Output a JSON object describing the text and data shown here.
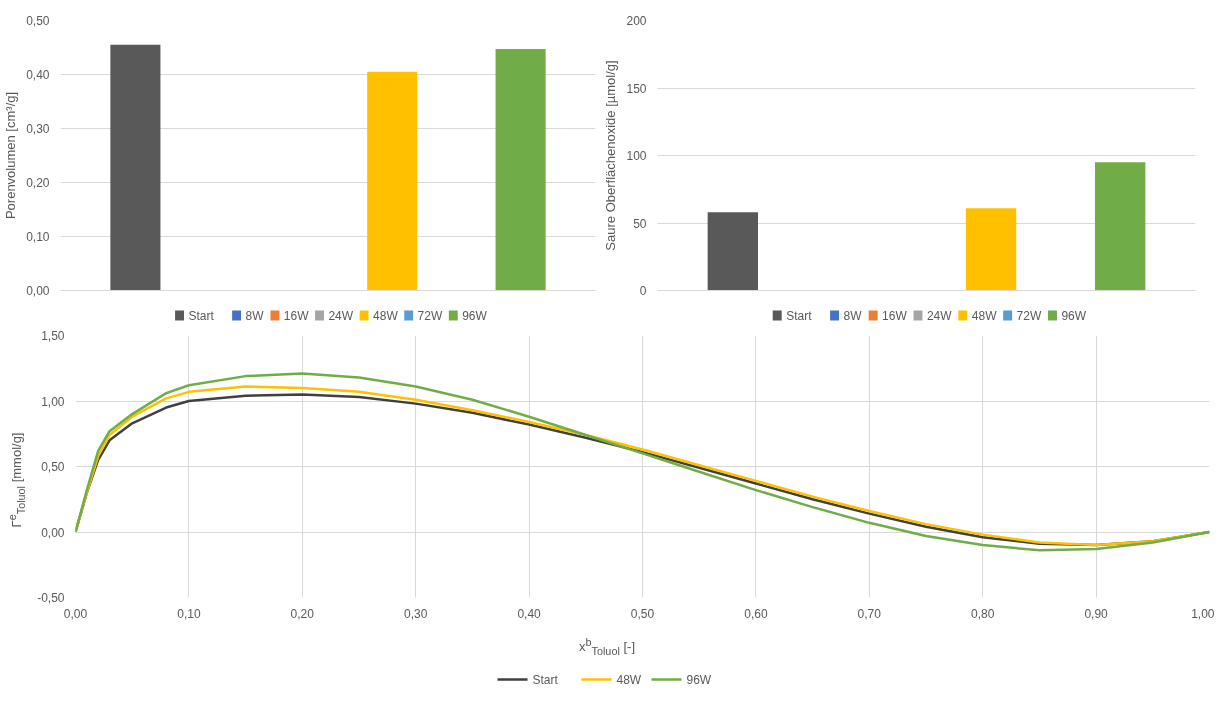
{
  "chart_data": [
    {
      "type": "bar",
      "ylabel": "Porenvolumen [cm³/g]",
      "categories": [
        null
      ],
      "ylim": [
        0,
        0.5
      ],
      "yticks": [
        {
          "value": 0,
          "label": "0,00"
        },
        {
          "value": 0.1,
          "label": "0,10"
        },
        {
          "value": 0.2,
          "label": "0,20"
        },
        {
          "value": 0.3,
          "label": "0,30"
        },
        {
          "value": 0.4,
          "label": "0,40"
        },
        {
          "value": 0.5,
          "label": "0,50"
        }
      ],
      "grid": "y",
      "legend": "bottom",
      "series": [
        {
          "name": "Start",
          "color": "#595959",
          "values": [
            0.455
          ]
        },
        {
          "name": "8W",
          "color": "#4472c4",
          "values": [
            null
          ]
        },
        {
          "name": "16W",
          "color": "#ed7d31",
          "values": [
            null
          ]
        },
        {
          "name": "24W",
          "color": "#a5a5a5",
          "values": [
            null
          ]
        },
        {
          "name": "48W",
          "color": "#ffc000",
          "values": [
            0.405
          ]
        },
        {
          "name": "72W",
          "color": "#5b9bd5",
          "values": [
            null
          ]
        },
        {
          "name": "96W",
          "color": "#70ad47",
          "values": [
            0.447
          ]
        }
      ]
    },
    {
      "type": "bar",
      "ylabel": "Saure Oberflächenoxide [µmol/g]",
      "categories": [
        null
      ],
      "ylim": [
        0,
        200
      ],
      "yticks": [
        0,
        50,
        100,
        150,
        200
      ],
      "grid": "y",
      "legend": "bottom",
      "series": [
        {
          "name": "Start",
          "color": "#595959",
          "values": [
            58
          ]
        },
        {
          "name": "8W",
          "color": "#4472c4",
          "values": [
            null
          ]
        },
        {
          "name": "16W",
          "color": "#ed7d31",
          "values": [
            null
          ]
        },
        {
          "name": "24W",
          "color": "#a5a5a5",
          "values": [
            null
          ]
        },
        {
          "name": "48W",
          "color": "#ffc000",
          "values": [
            61
          ]
        },
        {
          "name": "72W",
          "color": "#5b9bd5",
          "values": [
            null
          ]
        },
        {
          "name": "96W",
          "color": "#70ad47",
          "values": [
            95
          ]
        }
      ]
    },
    {
      "type": "line",
      "xlabel": "x$^{b}$$_{Toluol}$ [-]",
      "ylabel": "Γ$^{e}$$_{Toluol}$ [mmol/g]",
      "xlim": [
        0,
        1
      ],
      "ylim": [
        -0.5,
        1.5
      ],
      "xticks": [
        {
          "value": 0,
          "label": "0,00"
        },
        {
          "value": 0.1,
          "label": "0,10"
        },
        {
          "value": 0.2,
          "label": "0,20"
        },
        {
          "value": 0.3,
          "label": "0,30"
        },
        {
          "value": 0.4,
          "label": "0,40"
        },
        {
          "value": 0.5,
          "label": "0,50"
        },
        {
          "value": 0.6,
          "label": "0,60"
        },
        {
          "value": 0.7,
          "label": "0,70"
        },
        {
          "value": 0.8,
          "label": "0,80"
        },
        {
          "value": 0.9,
          "label": "0,90"
        },
        {
          "value": 1,
          "label": "1,00"
        }
      ],
      "yticks": [
        {
          "value": -0.5,
          "label": "-0,50"
        },
        {
          "value": 0,
          "label": "0,00"
        },
        {
          "value": 0.5,
          "label": "0,50"
        },
        {
          "value": 1,
          "label": "1,00"
        },
        {
          "value": 1.5,
          "label": "1,50"
        }
      ],
      "grid": true,
      "legend": "bottom",
      "marker": "none",
      "line_style": "solid",
      "x": [
        0,
        0.01,
        0.02,
        0.03,
        0.05,
        0.08,
        0.1,
        0.15,
        0.2,
        0.25,
        0.3,
        0.35,
        0.4,
        0.45,
        0.5,
        0.55,
        0.6,
        0.65,
        0.7,
        0.75,
        0.8,
        0.85,
        0.9,
        0.95,
        1
      ],
      "series": [
        {
          "name": "Start",
          "color": "#404040",
          "values": [
            0,
            0.3,
            0.55,
            0.7,
            0.83,
            0.95,
            1.0,
            1.04,
            1.05,
            1.03,
            0.98,
            0.91,
            0.82,
            0.72,
            0.61,
            0.49,
            0.37,
            0.25,
            0.14,
            0.04,
            -0.04,
            -0.09,
            -0.1,
            -0.07,
            0
          ]
        },
        {
          "name": "48W",
          "color": "#ffc000",
          "values": [
            0,
            0.3,
            0.58,
            0.74,
            0.88,
            1.02,
            1.07,
            1.11,
            1.1,
            1.07,
            1.01,
            0.93,
            0.84,
            0.74,
            0.63,
            0.51,
            0.39,
            0.27,
            0.16,
            0.06,
            -0.02,
            -0.08,
            -0.1,
            -0.07,
            0
          ]
        },
        {
          "name": "96W",
          "color": "#70ad47",
          "values": [
            0,
            0.32,
            0.62,
            0.77,
            0.9,
            1.06,
            1.12,
            1.19,
            1.21,
            1.18,
            1.11,
            1.01,
            0.88,
            0.74,
            0.6,
            0.46,
            0.32,
            0.19,
            0.07,
            -0.03,
            -0.1,
            -0.14,
            -0.13,
            -0.08,
            0
          ]
        }
      ]
    }
  ]
}
